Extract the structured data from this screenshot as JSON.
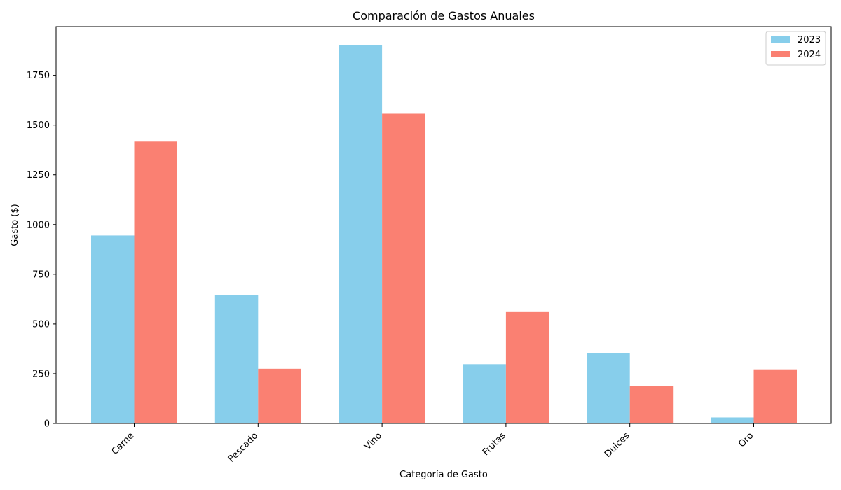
{
  "chart_data": {
    "type": "bar",
    "title": "Comparación de Gastos Anuales",
    "xlabel": "Categoría de Gasto",
    "ylabel": "Gasto ($)",
    "categories": [
      "Carne",
      "Pescado",
      "Vino",
      "Frutas",
      "Dulces",
      "Oro"
    ],
    "series": [
      {
        "name": "2023",
        "color": "#87CEEB",
        "values": [
          945,
          645,
          1900,
          298,
          352,
          30
        ]
      },
      {
        "name": "2024",
        "color": "#FA8072",
        "values": [
          1417,
          275,
          1557,
          560,
          190,
          272
        ]
      }
    ],
    "ylim": [
      0,
      1995
    ],
    "yticks": [
      0,
      250,
      500,
      750,
      1000,
      1250,
      1500,
      1750
    ],
    "legend_position": "top-right",
    "grid": false
  }
}
